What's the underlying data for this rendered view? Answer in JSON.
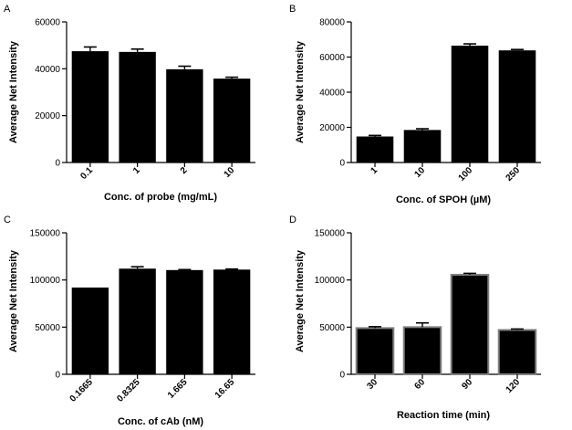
{
  "chart_data": [
    {
      "panel": "A",
      "type": "bar",
      "categories": [
        "0.1",
        "1",
        "2",
        "10"
      ],
      "values": [
        47500,
        47200,
        39800,
        35800
      ],
      "errors": [
        1800,
        1200,
        1300,
        600
      ],
      "xlabel": "Conc. of probe (mg/mL)",
      "ylabel": "Average Net Intensity",
      "ylim": [
        0,
        60000
      ],
      "yticks": [
        0,
        20000,
        40000,
        60000
      ],
      "ytick_labels": [
        "0",
        "20000",
        "40000",
        "60000"
      ],
      "bar_color": "#000000",
      "bar_edge": "#000000"
    },
    {
      "panel": "B",
      "type": "bar",
      "categories": [
        "1",
        "10",
        "100",
        "250"
      ],
      "values": [
        14800,
        18500,
        66500,
        63800
      ],
      "errors": [
        600,
        700,
        1000,
        500
      ],
      "xlabel": "Conc. of SPOH (µM)",
      "ylabel": "Average Net Intensity",
      "ylim": [
        0,
        80000
      ],
      "yticks": [
        0,
        20000,
        40000,
        60000,
        80000
      ],
      "ytick_labels": [
        "0",
        "20000",
        "40000",
        "60000",
        "80000"
      ],
      "bar_color": "#000000",
      "bar_edge": "#000000"
    },
    {
      "panel": "C",
      "type": "bar",
      "categories": [
        "0.1665",
        "0.8325",
        "1.665",
        "16.65"
      ],
      "values": [
        92000,
        112000,
        110500,
        111000
      ],
      "errors": [
        0,
        2000,
        500,
        600
      ],
      "xlabel": "Conc. of cAb (nM)",
      "ylabel": "Average Net Intensity",
      "ylim": [
        0,
        150000
      ],
      "yticks": [
        0,
        50000,
        100000,
        150000
      ],
      "ytick_labels": [
        "0",
        "50000",
        "100000",
        "150000"
      ],
      "bar_color": "#000000",
      "bar_edge": "#000000"
    },
    {
      "panel": "D",
      "type": "bar",
      "categories": [
        "30",
        "60",
        "90",
        "120"
      ],
      "values": [
        49000,
        50000,
        105500,
        47000
      ],
      "errors": [
        1500,
        4500,
        1500,
        1000
      ],
      "xlabel": "Reaction time (min)",
      "ylabel": "Average Net Intensity",
      "ylim": [
        0,
        150000
      ],
      "yticks": [
        0,
        50000,
        100000,
        150000
      ],
      "ytick_labels": [
        "0",
        "50000",
        "100000",
        "150000"
      ],
      "bar_color": "#000000",
      "bar_edge": "#808080"
    }
  ]
}
